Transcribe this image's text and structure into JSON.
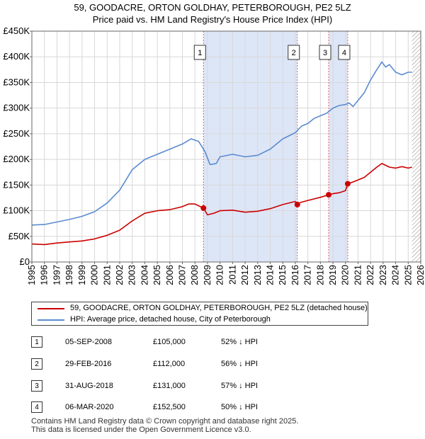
{
  "header": {
    "title": "59, GOODACRE, ORTON GOLDHAY, PETERBOROUGH, PE2 5LZ",
    "subtitle": "Price paid vs. HM Land Registry's House Price Index (HPI)"
  },
  "colors": {
    "price_paid": "#cc0000",
    "hpi": "#5b8bd0",
    "sale_shade": "#dde6f7",
    "sale_line": "#e06060",
    "grid": "#d8d8d8",
    "hatch": "#888888"
  },
  "chart_data": {
    "type": "line",
    "title": "Price paid vs. HM Land Registry's House Price Index (HPI)",
    "xlim": [
      1995,
      2026
    ],
    "ylim": [
      0,
      450000
    ],
    "x_ticks": [
      "1995",
      "1996",
      "1997",
      "1998",
      "1999",
      "2000",
      "2001",
      "2002",
      "2003",
      "2004",
      "2005",
      "2006",
      "2007",
      "2008",
      "2009",
      "2010",
      "2011",
      "2012",
      "2013",
      "2014",
      "2015",
      "2016",
      "2017",
      "2018",
      "2019",
      "2020",
      "2021",
      "2022",
      "2023",
      "2024",
      "2025",
      "2026"
    ],
    "y_ticks": [
      {
        "value": 0,
        "label": "£0"
      },
      {
        "value": 50000,
        "label": "£50K"
      },
      {
        "value": 100000,
        "label": "£100K"
      },
      {
        "value": 150000,
        "label": "£150K"
      },
      {
        "value": 200000,
        "label": "£200K"
      },
      {
        "value": 250000,
        "label": "£250K"
      },
      {
        "value": 300000,
        "label": "£300K"
      },
      {
        "value": 350000,
        "label": "£350K"
      },
      {
        "value": 400000,
        "label": "£400K"
      },
      {
        "value": 450000,
        "label": "£450K"
      }
    ],
    "data_end": 2025.3,
    "series": [
      {
        "name": "59, GOODACRE, ORTON GOLDHAY, PETERBOROUGH, PE2 5LZ (detached house)",
        "color": "#cc0000",
        "x": [
          1995.0,
          1996.0,
          1997.0,
          1998.0,
          1999.0,
          2000.0,
          2001.0,
          2002.0,
          2003.0,
          2004.0,
          2005.0,
          2006.0,
          2007.0,
          2007.5,
          2008.0,
          2008.68,
          2009.0,
          2009.5,
          2010.0,
          2011.0,
          2012.0,
          2013.0,
          2014.0,
          2015.0,
          2016.0,
          2016.16,
          2016.4,
          2017.0,
          2018.0,
          2018.66,
          2019.0,
          2019.5,
          2020.0,
          2020.18,
          2020.5,
          2021.0,
          2021.5,
          2022.0,
          2022.5,
          2022.9,
          2023.5,
          2024.0,
          2024.5,
          2025.0,
          2025.3
        ],
        "y": [
          35000,
          34000,
          37000,
          39000,
          41000,
          45000,
          52000,
          62000,
          80000,
          95000,
          100000,
          102000,
          108000,
          113000,
          113000,
          105000,
          92000,
          95000,
          100000,
          101000,
          97000,
          99000,
          104000,
          112000,
          118000,
          112000,
          116000,
          120000,
          126000,
          131000,
          133000,
          135000,
          139000,
          152500,
          155000,
          160000,
          165000,
          175000,
          185000,
          192000,
          185000,
          183000,
          186000,
          183000,
          185000
        ]
      },
      {
        "name": "HPI: Average price, detached house, City of Peterborough",
        "color": "#5b8bd0",
        "x": [
          1995.0,
          1996.0,
          1997.0,
          1998.0,
          1999.0,
          2000.0,
          2001.0,
          2002.0,
          2003.0,
          2004.0,
          2005.0,
          2006.0,
          2007.0,
          2007.7,
          2008.3,
          2008.8,
          2009.2,
          2009.7,
          2010.0,
          2011.0,
          2012.0,
          2013.0,
          2014.0,
          2015.0,
          2016.0,
          2016.5,
          2017.0,
          2017.5,
          2018.0,
          2018.5,
          2019.0,
          2019.5,
          2020.0,
          2020.3,
          2020.6,
          2021.0,
          2021.5,
          2022.0,
          2022.5,
          2022.9,
          2023.2,
          2023.5,
          2024.0,
          2024.5,
          2025.0,
          2025.3
        ],
        "y": [
          72000,
          73000,
          78000,
          83000,
          89000,
          98000,
          115000,
          140000,
          180000,
          200000,
          210000,
          220000,
          230000,
          240000,
          235000,
          215000,
          190000,
          192000,
          205000,
          210000,
          205000,
          208000,
          220000,
          240000,
          252000,
          265000,
          270000,
          280000,
          285000,
          290000,
          300000,
          305000,
          307000,
          310000,
          303000,
          315000,
          330000,
          355000,
          375000,
          390000,
          380000,
          385000,
          370000,
          365000,
          370000,
          370000
        ]
      }
    ],
    "sales": [
      {
        "n": "1",
        "x": 2008.68,
        "price": 105000
      },
      {
        "n": "2",
        "x": 2016.16,
        "price": 112000
      },
      {
        "n": "3",
        "x": 2018.66,
        "price": 131000
      },
      {
        "n": "4",
        "x": 2020.18,
        "price": 152500
      }
    ],
    "shaded_ranges": [
      [
        2008.68,
        2016.16
      ],
      [
        2018.66,
        2020.18
      ]
    ]
  },
  "legend": {
    "items": [
      {
        "label": "59, GOODACRE, ORTON GOLDHAY, PETERBOROUGH, PE2 5LZ (detached house)",
        "color": "#cc0000"
      },
      {
        "label": "HPI: Average price, detached house, City of Peterborough",
        "color": "#5b8bd0"
      }
    ]
  },
  "transactions": [
    {
      "n": "1",
      "date": "05-SEP-2008",
      "price": "£105,000",
      "hpi": "52% ↓ HPI"
    },
    {
      "n": "2",
      "date": "29-FEB-2016",
      "price": "£112,000",
      "hpi": "56% ↓ HPI"
    },
    {
      "n": "3",
      "date": "31-AUG-2018",
      "price": "£131,000",
      "hpi": "57% ↓ HPI"
    },
    {
      "n": "4",
      "date": "06-MAR-2020",
      "price": "£152,500",
      "hpi": "50% ↓ HPI"
    }
  ],
  "footer": {
    "line1": "Contains HM Land Registry data © Crown copyright and database right 2025.",
    "line2": "This data is licensed under the Open Government Licence v3.0."
  }
}
